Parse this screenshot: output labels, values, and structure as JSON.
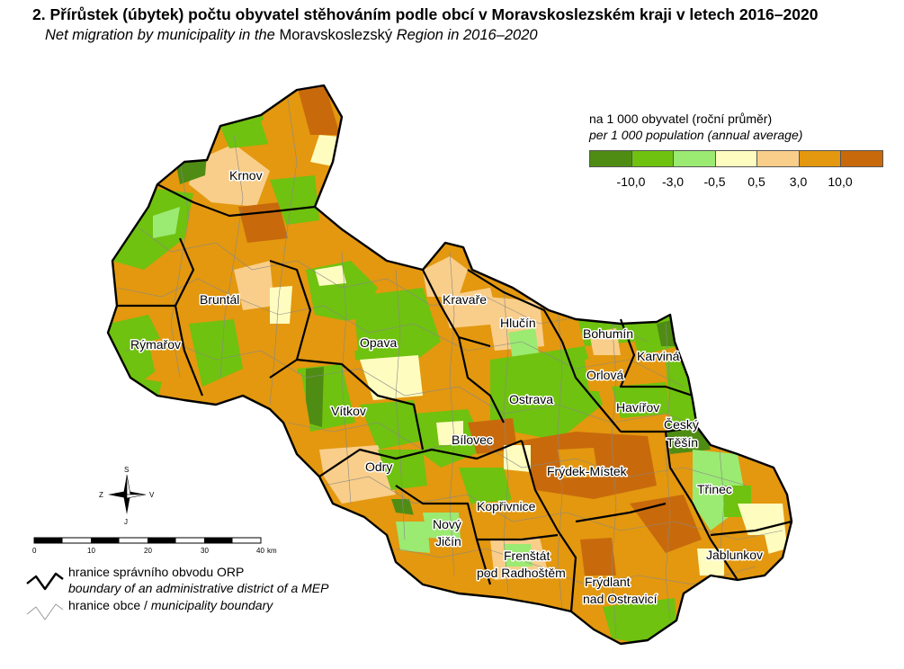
{
  "title": {
    "number": "2.",
    "cz": "Přírůstek (úbytek) počtu obyvatel stěhováním podle obcí v Moravskoslezském kraji v letech 2016–2020",
    "en_part1": "Net migration by municipality in the",
    "en_region": "Moravskoslezský",
    "en_part2": "Region in 2016–2020"
  },
  "legend": {
    "unit_cz": "na 1 000 obyvatel (roční průměr)",
    "unit_en": "per 1 000 population (annual average)",
    "classes": [
      {
        "color": "#4f8c13"
      },
      {
        "color": "#6fc20f"
      },
      {
        "color": "#9bea72"
      },
      {
        "color": "#fffcc0"
      },
      {
        "color": "#f9ce8a"
      },
      {
        "color": "#e3980f"
      },
      {
        "color": "#c86a0c"
      }
    ],
    "breaks": [
      "-10,0",
      "-3,0",
      "-0,5",
      "0,5",
      "3,0",
      "10,0"
    ]
  },
  "scale_bar": {
    "ticks": [
      "0",
      "10",
      "20",
      "30",
      "40"
    ],
    "unit": "km"
  },
  "north_arrow": {
    "n": "S",
    "s": "J",
    "w": "Z",
    "e": "V"
  },
  "map_legend": {
    "orp_cz": "hranice správního obvodu ORP",
    "orp_en": "boundary of an administrative district of a MEP",
    "obec": "hranice obce /",
    "obec_en": "municipality boundary"
  },
  "places": [
    {
      "name": "Krnov"
    },
    {
      "name": "Bruntál"
    },
    {
      "name": "Rýmařov"
    },
    {
      "name": "Kravaře"
    },
    {
      "name": "Hlučín"
    },
    {
      "name": "Opava"
    },
    {
      "name": "Bohumín"
    },
    {
      "name": "Karviná"
    },
    {
      "name": "Orlová"
    },
    {
      "name": "Ostrava"
    },
    {
      "name": "Havířov"
    },
    {
      "name": "Český"
    },
    {
      "name": "Těšín"
    },
    {
      "name": "Vítkov"
    },
    {
      "name": "Bílovec"
    },
    {
      "name": "Odry"
    },
    {
      "name": "Frýdek-Místek"
    },
    {
      "name": "Třinec"
    },
    {
      "name": "Kopřivnice"
    },
    {
      "name": "Nový"
    },
    {
      "name": "Jičín"
    },
    {
      "name": "Frenštát"
    },
    {
      "name": "pod Radhoštěm"
    },
    {
      "name": "Frýdlant"
    },
    {
      "name": "nad Ostravicí"
    },
    {
      "name": "Jablunkov"
    }
  ]
}
